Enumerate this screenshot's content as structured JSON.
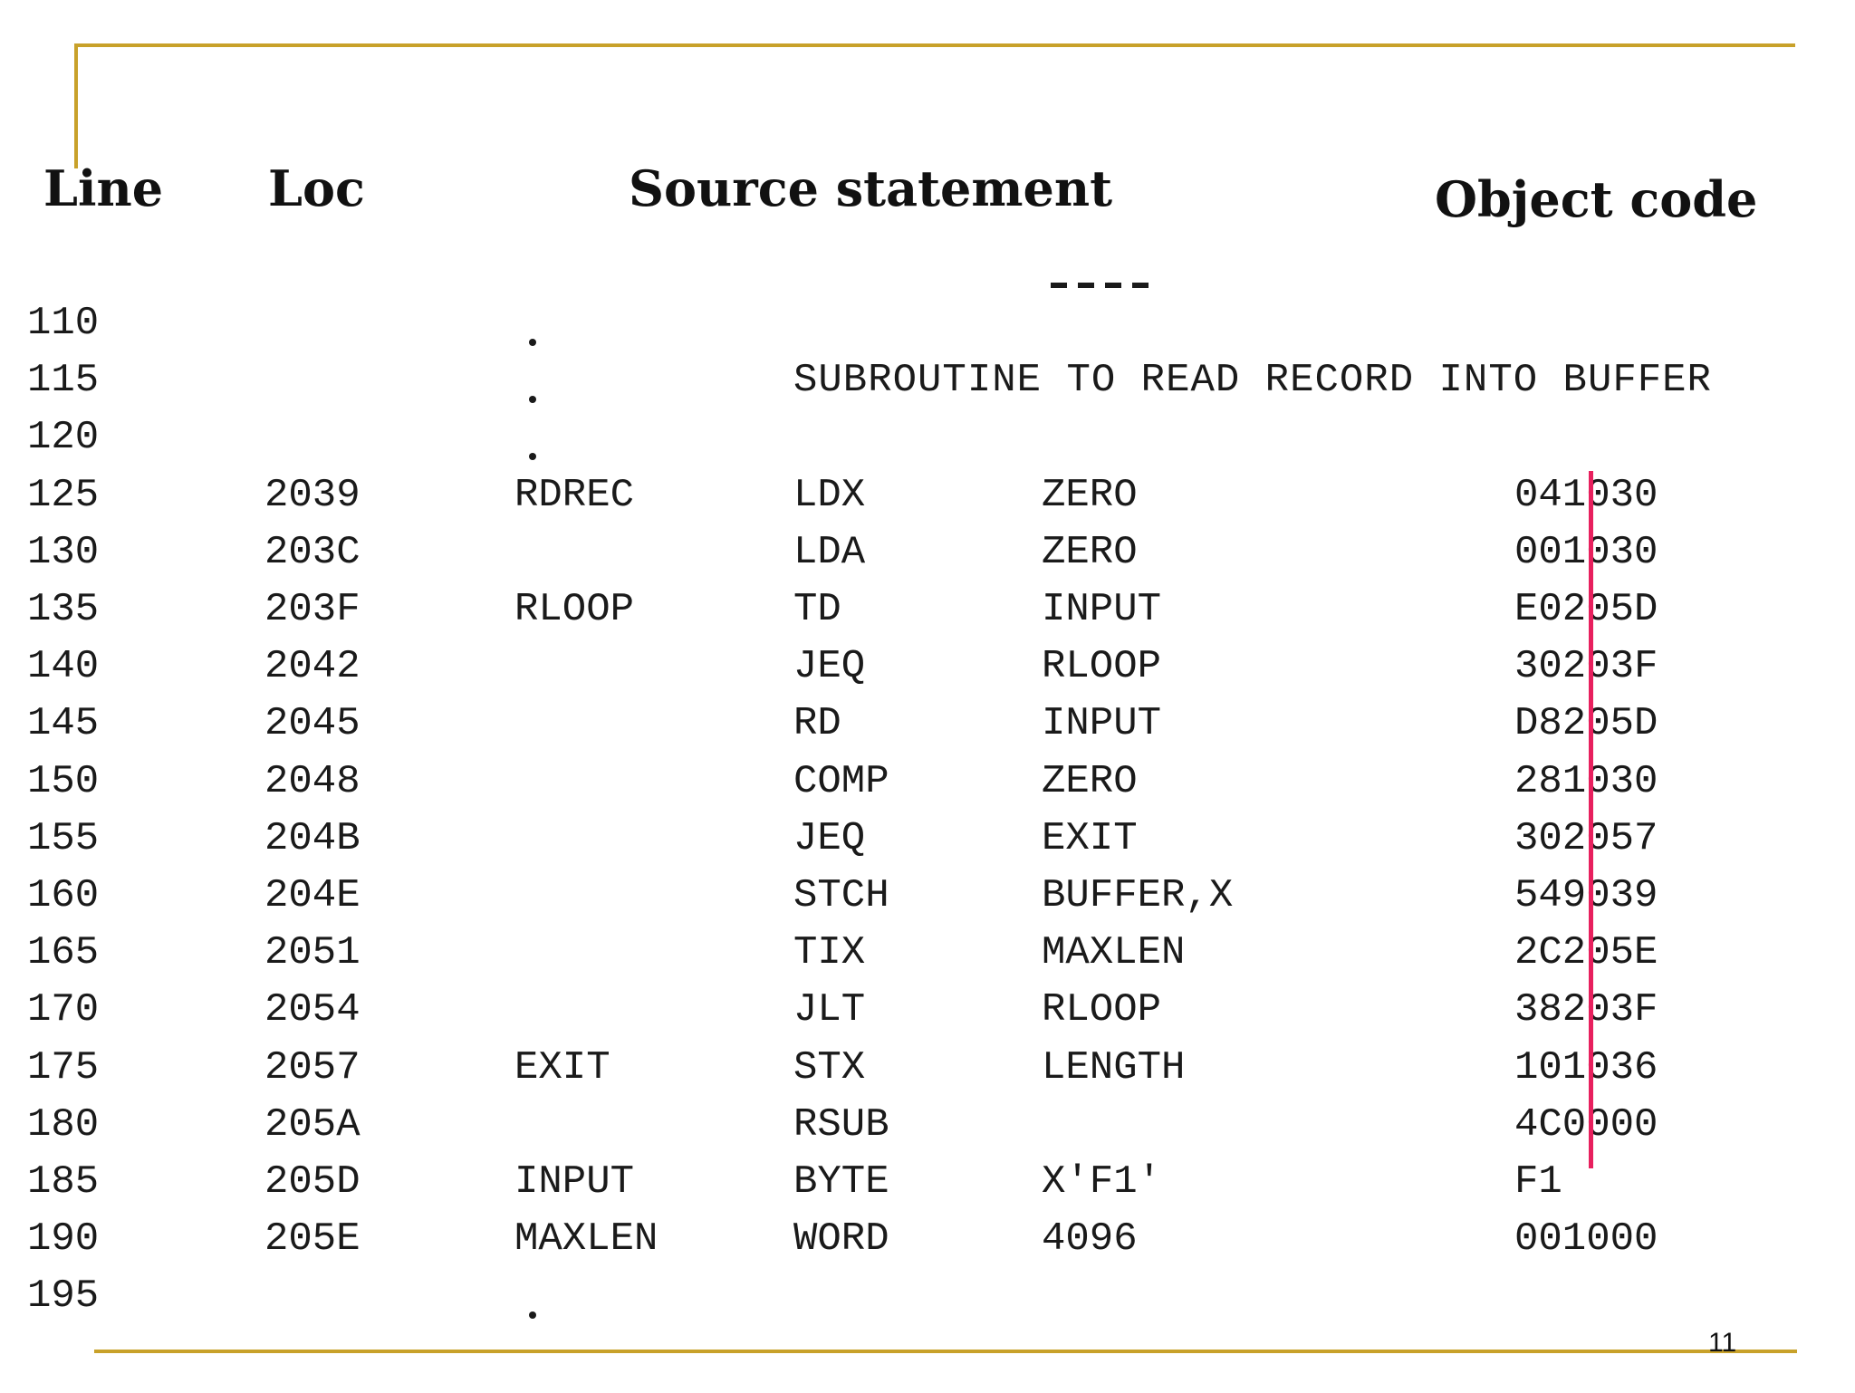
{
  "headers": {
    "line": "Line",
    "loc": "Loc",
    "source": "Source statement",
    "object": "Object code"
  },
  "rows": [
    {
      "line": "110",
      "loc": "",
      "label": "",
      "op": "",
      "operand": "",
      "object": "",
      "comment": "",
      "dot": true
    },
    {
      "line": "115",
      "loc": "",
      "label": "",
      "op": "",
      "operand": "",
      "object": "",
      "comment": "SUBROUTINE TO READ RECORD INTO BUFFER",
      "dot": true
    },
    {
      "line": "120",
      "loc": "",
      "label": "",
      "op": "",
      "operand": "",
      "object": "",
      "comment": "",
      "dot": true
    },
    {
      "line": "125",
      "loc": "2039",
      "label": "RDREC",
      "op": "LDX",
      "operand": "ZERO",
      "object": "041030",
      "comment": "",
      "dot": false
    },
    {
      "line": "130",
      "loc": "203C",
      "label": "",
      "op": "LDA",
      "operand": "ZERO",
      "object": "001030",
      "comment": "",
      "dot": false
    },
    {
      "line": "135",
      "loc": "203F",
      "label": "RLOOP",
      "op": "TD",
      "operand": "INPUT",
      "object": "E0205D",
      "comment": "",
      "dot": false
    },
    {
      "line": "140",
      "loc": "2042",
      "label": "",
      "op": "JEQ",
      "operand": "RLOOP",
      "object": "30203F",
      "comment": "",
      "dot": false
    },
    {
      "line": "145",
      "loc": "2045",
      "label": "",
      "op": "RD",
      "operand": "INPUT",
      "object": "D8205D",
      "comment": "",
      "dot": false
    },
    {
      "line": "150",
      "loc": "2048",
      "label": "",
      "op": "COMP",
      "operand": "ZERO",
      "object": "281030",
      "comment": "",
      "dot": false
    },
    {
      "line": "155",
      "loc": "204B",
      "label": "",
      "op": "JEQ",
      "operand": "EXIT",
      "object": "302057",
      "comment": "",
      "dot": false
    },
    {
      "line": "160",
      "loc": "204E",
      "label": "",
      "op": "STCH",
      "operand": "BUFFER,X",
      "object": "549039",
      "comment": "",
      "dot": false
    },
    {
      "line": "165",
      "loc": "2051",
      "label": "",
      "op": "TIX",
      "operand": "MAXLEN",
      "object": "2C205E",
      "comment": "",
      "dot": false
    },
    {
      "line": "170",
      "loc": "2054",
      "label": "",
      "op": "JLT",
      "operand": "RLOOP",
      "object": "38203F",
      "comment": "",
      "dot": false
    },
    {
      "line": "175",
      "loc": "2057",
      "label": "EXIT",
      "op": "STX",
      "operand": "LENGTH",
      "object": "101036",
      "comment": "",
      "dot": false
    },
    {
      "line": "180",
      "loc": "205A",
      "label": "",
      "op": "RSUB",
      "operand": "",
      "object": "4C0000",
      "comment": "",
      "dot": false
    },
    {
      "line": "185",
      "loc": "205D",
      "label": "INPUT",
      "op": "BYTE",
      "operand": "X'F1'",
      "object": "F1",
      "comment": "",
      "dot": false
    },
    {
      "line": "190",
      "loc": "205E",
      "label": "MAXLEN",
      "op": "WORD",
      "operand": "4096",
      "object": "001000",
      "comment": "",
      "dot": false
    },
    {
      "line": "195",
      "loc": "",
      "label": "",
      "op": "",
      "operand": "",
      "object": "",
      "comment": "",
      "dot": true
    }
  ],
  "page_number": "11",
  "colors": {
    "rule": "#c8a12a",
    "marker": "#e8205e"
  }
}
